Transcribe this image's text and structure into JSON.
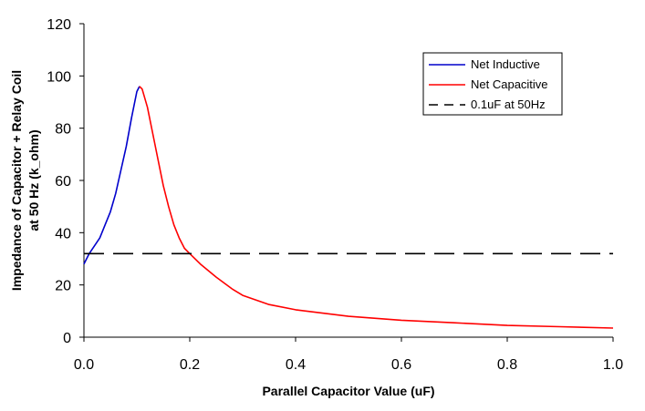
{
  "chart_data": {
    "type": "line",
    "title": "",
    "xlabel": "Parallel Capacitor Value (uF)",
    "ylabel_lines": [
      "Impedance of Capacitor + Relay Coil",
      "at 50 Hz (k_ohm)"
    ],
    "xlim": [
      0,
      1.0
    ],
    "ylim": [
      0,
      120
    ],
    "x_ticks": [
      0.0,
      0.2,
      0.4,
      0.6,
      0.8,
      1.0
    ],
    "x_tick_labels": [
      "0.0",
      "0.2",
      "0.4",
      "0.6",
      "0.8",
      "1.0"
    ],
    "y_ticks": [
      0,
      20,
      40,
      60,
      80,
      100,
      120
    ],
    "y_tick_labels": [
      "0",
      "20",
      "40",
      "60",
      "80",
      "100",
      "120"
    ],
    "grid": false,
    "legend_position": "top-right",
    "series": [
      {
        "name": "Net Inductive",
        "color": "#0000cc",
        "style": "solid",
        "x": [
          0.0,
          0.01,
          0.02,
          0.03,
          0.04,
          0.05,
          0.06,
          0.07,
          0.08,
          0.09,
          0.1,
          0.105
        ],
        "y": [
          28,
          32,
          35,
          38,
          43,
          48,
          55,
          64,
          73,
          84,
          94,
          96
        ]
      },
      {
        "name": "Net Capacitive",
        "color": "#ff0000",
        "style": "solid",
        "x": [
          0.105,
          0.11,
          0.12,
          0.13,
          0.14,
          0.15,
          0.16,
          0.17,
          0.18,
          0.19,
          0.2,
          0.22,
          0.25,
          0.28,
          0.3,
          0.35,
          0.4,
          0.5,
          0.6,
          0.7,
          0.8,
          0.9,
          1.0
        ],
        "y": [
          96,
          95,
          88,
          78,
          68,
          58,
          50,
          43,
          38,
          34,
          32,
          28,
          23,
          18.5,
          16,
          12.5,
          10.5,
          8,
          6.5,
          5.5,
          4.5,
          4,
          3.5
        ]
      },
      {
        "name": "0.1uF at 50Hz",
        "color": "#000000",
        "style": "dashed",
        "x": [
          0.0,
          1.0
        ],
        "y": [
          32,
          32
        ]
      }
    ]
  }
}
